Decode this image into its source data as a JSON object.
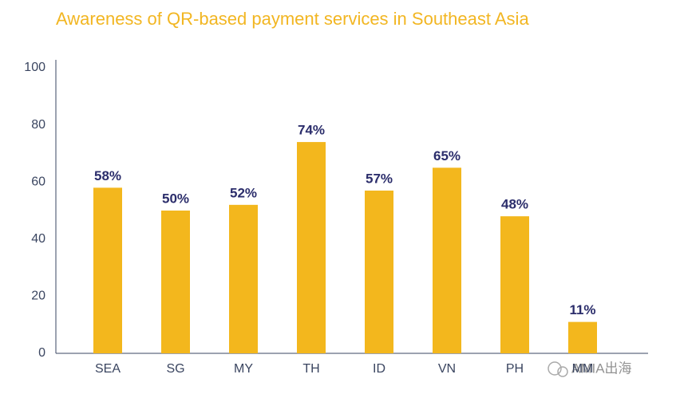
{
  "chart_data": {
    "type": "bar",
    "title": "Awareness of QR-based payment services in Southeast Asia",
    "categories": [
      "SEA",
      "SG",
      "MY",
      "TH",
      "ID",
      "VN",
      "PH",
      "MM"
    ],
    "values": [
      58,
      50,
      52,
      74,
      57,
      65,
      48,
      11
    ],
    "value_labels": [
      "58%",
      "50%",
      "52%",
      "74%",
      "57%",
      "65%",
      "48%",
      "11%"
    ],
    "color": "#f3b71d",
    "ylim": [
      0,
      100
    ],
    "yticks": [
      0,
      20,
      40,
      60,
      80,
      100
    ],
    "grid": false
  },
  "watermark": "AMIA出海"
}
